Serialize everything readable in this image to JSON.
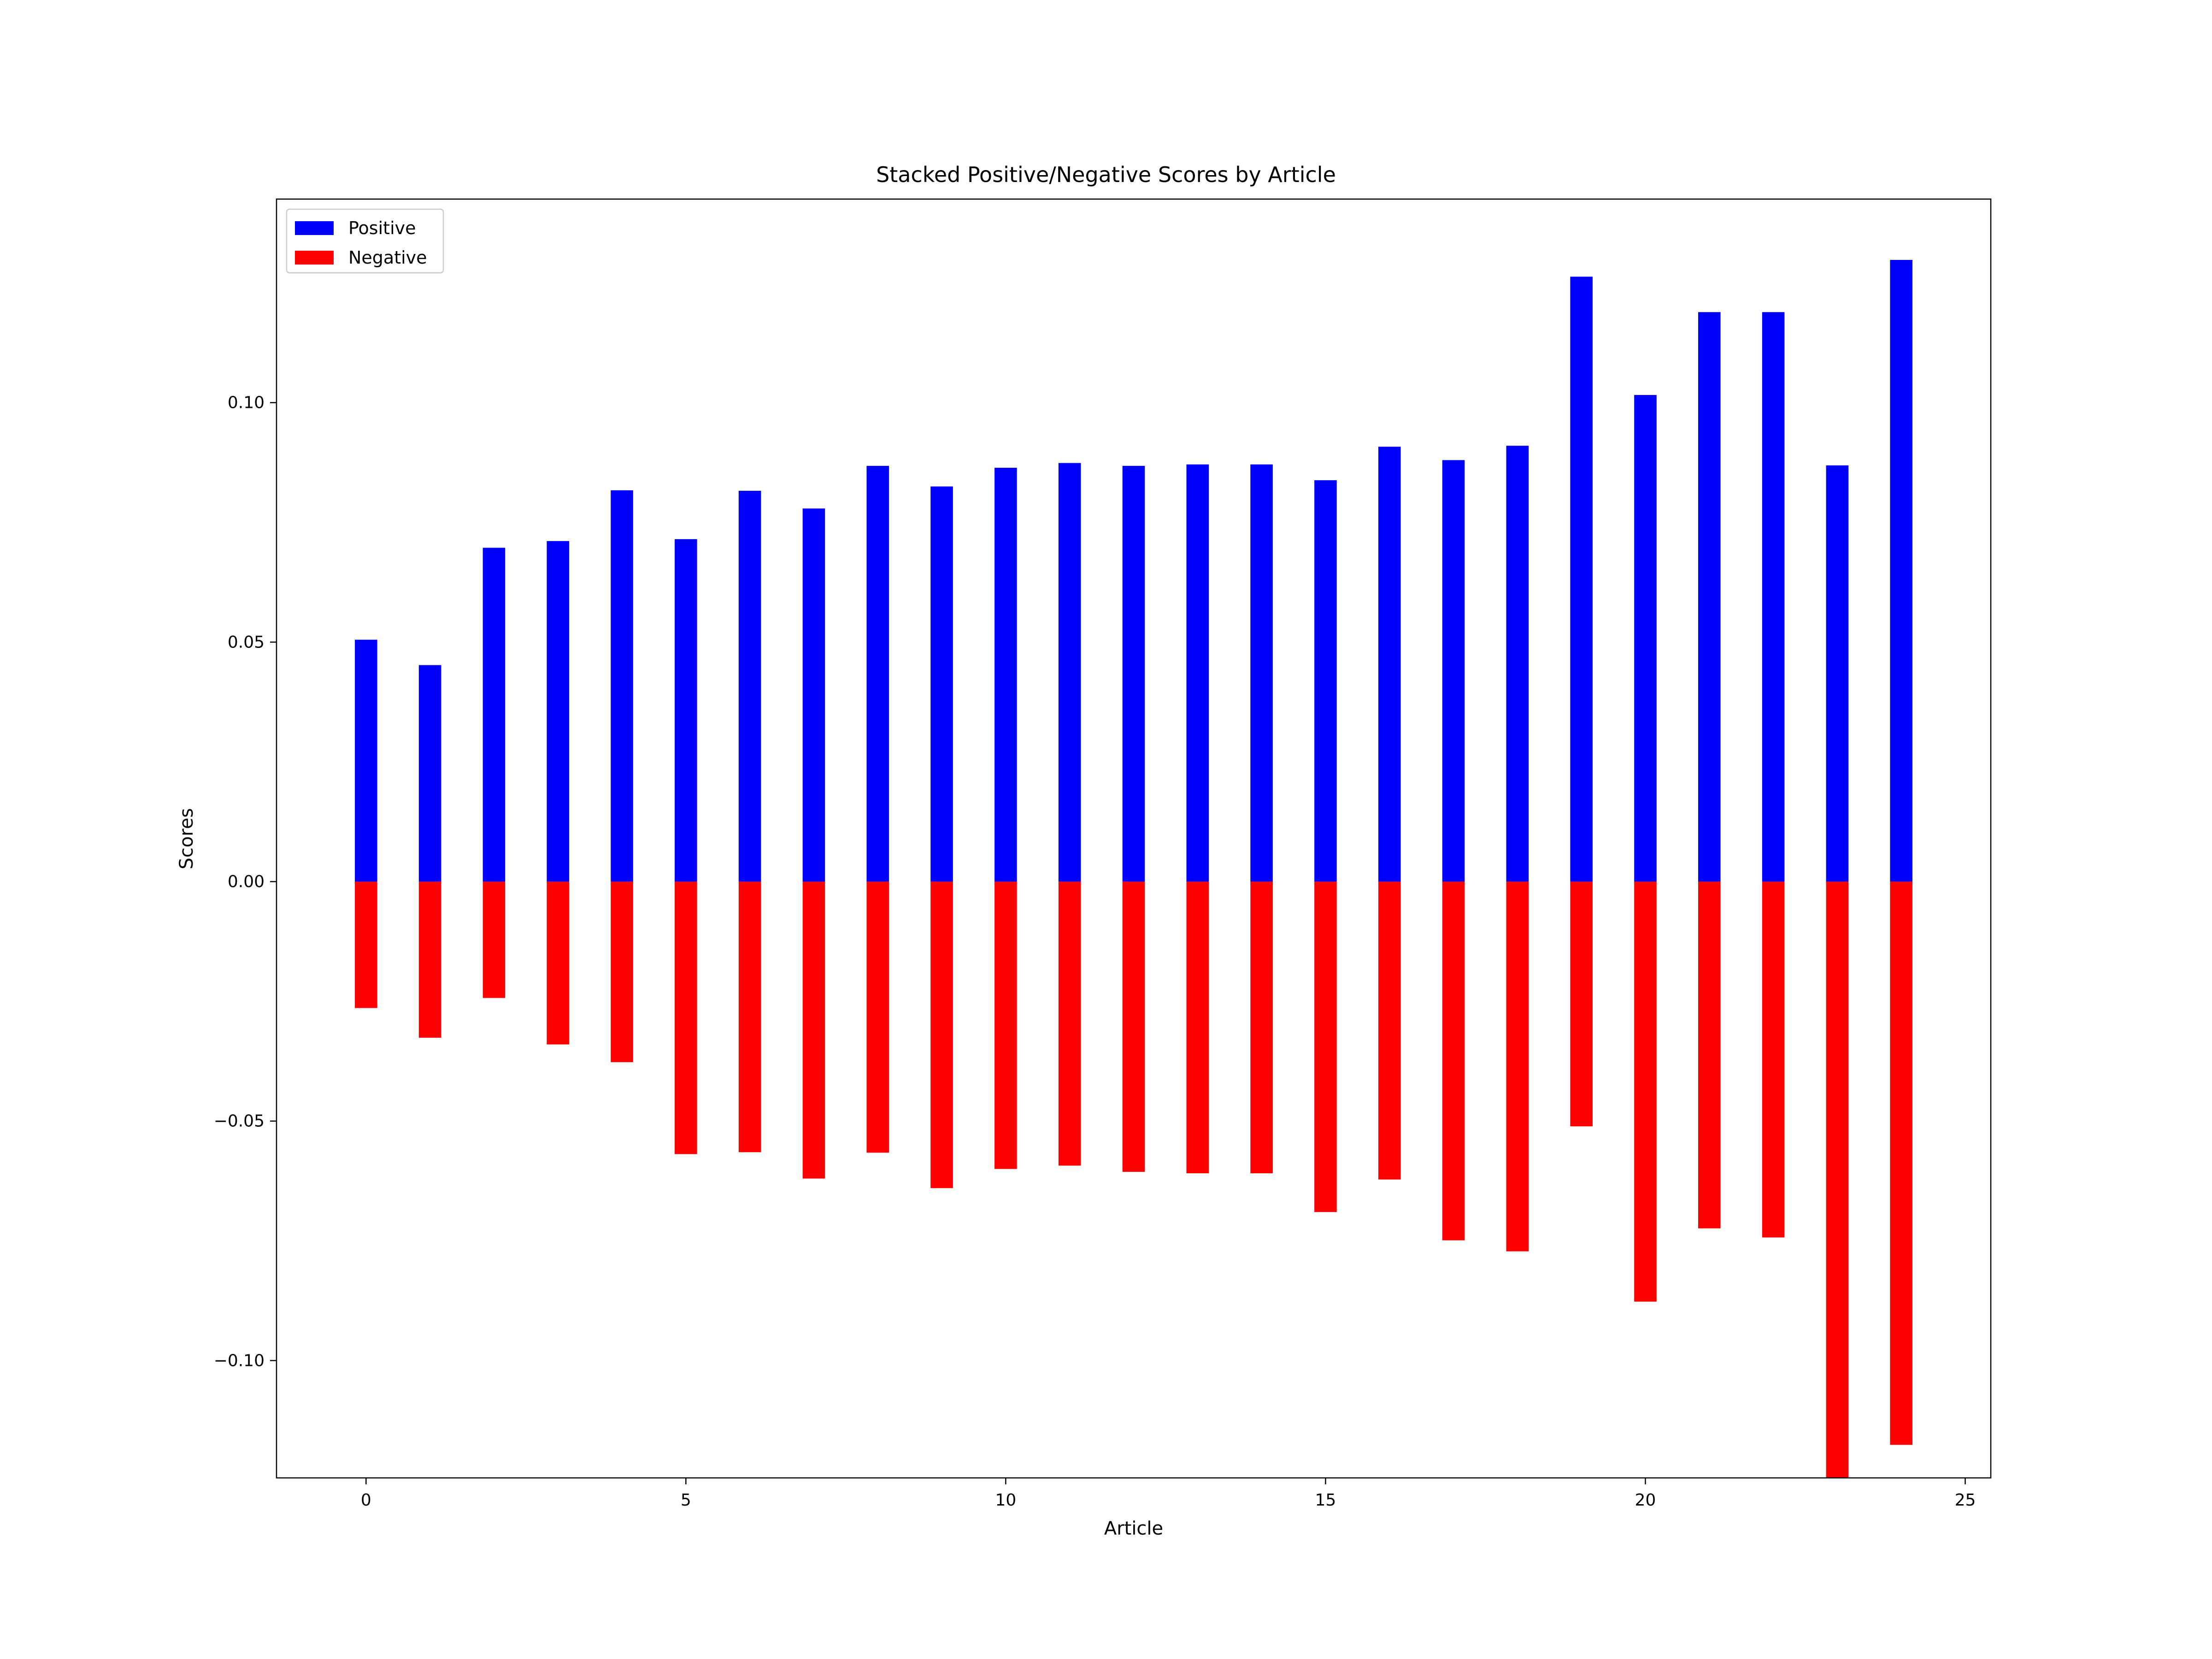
{
  "chart_data": {
    "type": "bar",
    "title": "Stacked Positive/Negative Scores by Article",
    "xlabel": "Article",
    "ylabel": "Scores",
    "x": [
      0,
      1,
      2,
      3,
      4,
      5,
      6,
      7,
      8,
      9,
      10,
      11,
      12,
      13,
      14,
      15,
      16,
      17,
      18,
      19,
      20,
      21,
      22,
      23,
      24
    ],
    "xlim": [
      -1.4,
      25.4
    ],
    "ylim": [
      -0.1245,
      0.1425
    ],
    "xticks": [
      0,
      5,
      10,
      15,
      20,
      25
    ],
    "xtick_labels": [
      "0",
      "5",
      "10",
      "15",
      "20",
      "25"
    ],
    "yticks": [
      -0.1,
      -0.05,
      0.0,
      0.05,
      0.1
    ],
    "ytick_labels": [
      "−0.10",
      "−0.05",
      "0.00",
      "0.05",
      "0.10"
    ],
    "grid": false,
    "legend_position": "top-left",
    "series": [
      {
        "name": "Positive",
        "color": "#0000ff",
        "values": [
          0.0505,
          0.0452,
          0.0697,
          0.0711,
          0.0817,
          0.0715,
          0.0816,
          0.0779,
          0.0868,
          0.0825,
          0.0864,
          0.0874,
          0.0868,
          0.0871,
          0.0871,
          0.0838,
          0.0908,
          0.088,
          0.091,
          0.1263,
          0.1016,
          0.1189,
          0.1189,
          0.0869,
          0.1298
        ]
      },
      {
        "name": "Negative",
        "color": "#ff0000",
        "values": [
          -0.0264,
          -0.0326,
          -0.0243,
          -0.034,
          -0.0377,
          -0.0569,
          -0.0565,
          -0.062,
          -0.0566,
          -0.064,
          -0.06,
          -0.0593,
          -0.0606,
          -0.0609,
          -0.0609,
          -0.069,
          -0.0622,
          -0.0749,
          -0.0772,
          -0.0511,
          -0.0877,
          -0.0724,
          -0.0743,
          -0.125,
          -0.1176
        ]
      }
    ]
  }
}
